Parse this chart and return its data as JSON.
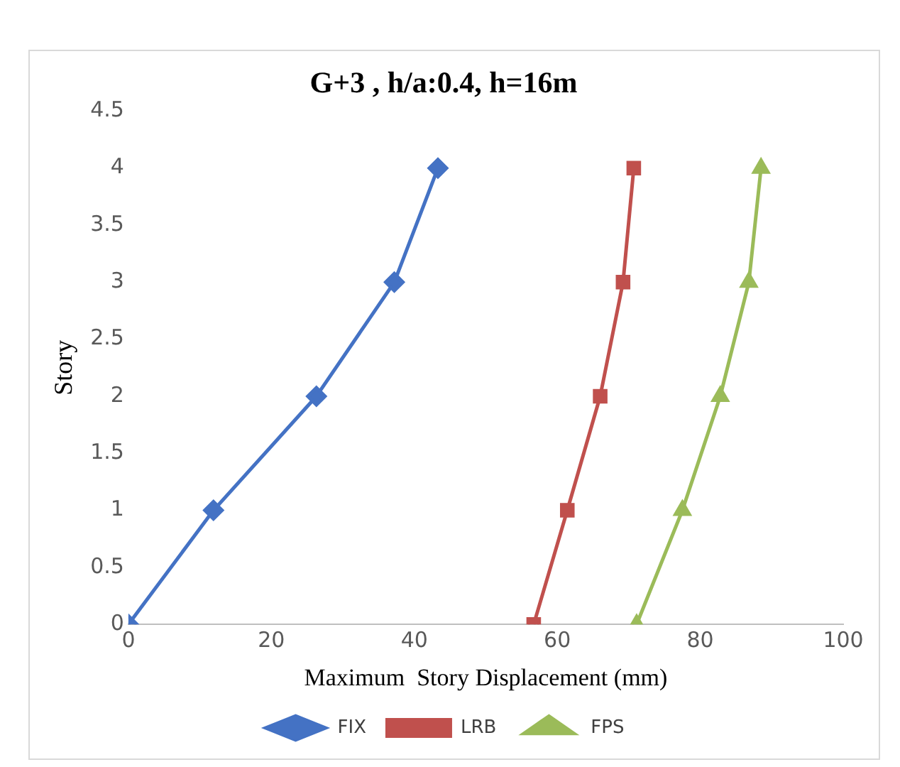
{
  "chart_data": {
    "type": "line",
    "title": "G+3 , h/a:0.4, h=16m",
    "xlabel": "Maximum  Story Displacement (mm)",
    "ylabel": "Story",
    "xlim": [
      0,
      100
    ],
    "xticks": [
      0,
      20,
      40,
      60,
      80,
      100
    ],
    "ylim": [
      0,
      4.5
    ],
    "yticks": [
      0,
      0.5,
      1,
      1.5,
      2,
      2.5,
      3,
      3.5,
      4,
      4.5
    ],
    "grid": false,
    "legend": "bottom",
    "series": [
      {
        "name": "FIX",
        "color": "#4472c4",
        "marker": "diamond",
        "x": [
          0,
          11.9,
          26.3,
          37.2,
          43.3
        ],
        "values": [
          0,
          1,
          2,
          3,
          4
        ]
      },
      {
        "name": "LRB",
        "color": "#c0504d",
        "marker": "square",
        "x": [
          56.7,
          61.4,
          66.0,
          69.2,
          70.7
        ],
        "values": [
          0,
          1,
          2,
          3,
          4
        ]
      },
      {
        "name": "FPS",
        "color": "#9bbb59",
        "marker": "triangle",
        "x": [
          71.1,
          77.5,
          82.8,
          86.8,
          88.5
        ],
        "values": [
          0,
          1,
          2,
          3,
          4
        ]
      }
    ]
  }
}
